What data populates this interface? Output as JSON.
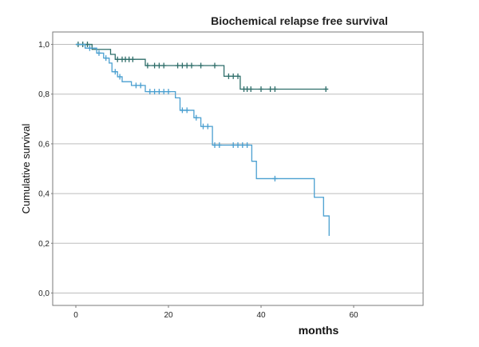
{
  "chart_data": {
    "type": "line",
    "title": "Biochemical relapse free survival",
    "xlabel": "months",
    "ylabel": "Cumulative survival",
    "xlim": [
      -5,
      75
    ],
    "ylim": [
      -0.05,
      1.05
    ],
    "x_ticks": [
      0,
      20,
      40,
      60
    ],
    "y_ticks": [
      0.0,
      0.2,
      0.4,
      0.6,
      0.8,
      1.0
    ],
    "x_tick_labels": [
      "0",
      "20",
      "40",
      "60"
    ],
    "y_tick_labels": [
      "0,0",
      "0,2",
      "0,4",
      "0,6",
      "0,8",
      "1,0"
    ],
    "grid": true,
    "series": [
      {
        "color": "#2f6e6a",
        "steps": [
          [
            0,
            1.0
          ],
          [
            3.5,
            0.98
          ],
          [
            7.5,
            0.96
          ],
          [
            8.5,
            0.94
          ],
          [
            15,
            0.915
          ],
          [
            32,
            0.872
          ],
          [
            35.5,
            0.82
          ],
          [
            54.5,
            0.82
          ]
        ],
        "censored": [
          [
            0.5,
            1.0
          ],
          [
            1.5,
            1.0
          ],
          [
            2.5,
            1.0
          ],
          [
            9,
            0.94
          ],
          [
            10,
            0.94
          ],
          [
            10.7,
            0.94
          ],
          [
            11.5,
            0.94
          ],
          [
            12.3,
            0.94
          ],
          [
            15.5,
            0.915
          ],
          [
            17,
            0.915
          ],
          [
            18,
            0.915
          ],
          [
            19,
            0.915
          ],
          [
            22,
            0.915
          ],
          [
            23,
            0.915
          ],
          [
            24,
            0.915
          ],
          [
            25,
            0.915
          ],
          [
            27,
            0.915
          ],
          [
            30,
            0.915
          ],
          [
            33,
            0.872
          ],
          [
            34,
            0.872
          ],
          [
            35,
            0.872
          ],
          [
            36.3,
            0.82
          ],
          [
            37,
            0.82
          ],
          [
            37.8,
            0.82
          ],
          [
            40,
            0.82
          ],
          [
            42,
            0.82
          ],
          [
            43,
            0.82
          ],
          [
            54,
            0.82
          ]
        ]
      },
      {
        "color": "#4a9fd0",
        "steps": [
          [
            0,
            1.0
          ],
          [
            2,
            0.985
          ],
          [
            4.5,
            0.965
          ],
          [
            6,
            0.945
          ],
          [
            7.2,
            0.925
          ],
          [
            7.8,
            0.89
          ],
          [
            9,
            0.87
          ],
          [
            10,
            0.85
          ],
          [
            12,
            0.835
          ],
          [
            15,
            0.81
          ],
          [
            21.5,
            0.785
          ],
          [
            22.5,
            0.735
          ],
          [
            25.5,
            0.705
          ],
          [
            27,
            0.67
          ],
          [
            29.5,
            0.595
          ],
          [
            38,
            0.53
          ],
          [
            39,
            0.46
          ],
          [
            51.5,
            0.385
          ],
          [
            53.5,
            0.31
          ],
          [
            54.7,
            0.23
          ]
        ],
        "censored": [
          [
            3,
            0.985
          ],
          [
            5,
            0.965
          ],
          [
            6.5,
            0.945
          ],
          [
            8.5,
            0.89
          ],
          [
            9.5,
            0.87
          ],
          [
            13,
            0.835
          ],
          [
            14,
            0.835
          ],
          [
            16,
            0.81
          ],
          [
            17,
            0.81
          ],
          [
            18,
            0.81
          ],
          [
            19,
            0.81
          ],
          [
            20,
            0.81
          ],
          [
            23,
            0.735
          ],
          [
            24,
            0.735
          ],
          [
            26,
            0.705
          ],
          [
            27.5,
            0.67
          ],
          [
            28.5,
            0.67
          ],
          [
            30,
            0.595
          ],
          [
            31,
            0.595
          ],
          [
            34,
            0.595
          ],
          [
            35,
            0.595
          ],
          [
            36,
            0.595
          ],
          [
            37,
            0.595
          ],
          [
            43,
            0.46
          ]
        ]
      }
    ]
  }
}
